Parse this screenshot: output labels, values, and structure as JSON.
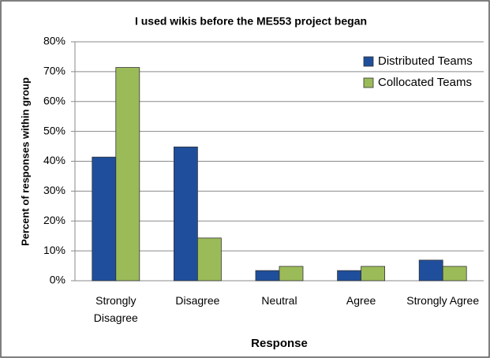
{
  "chart_data": {
    "type": "bar",
    "title": "I used wikis before the ME553 project began",
    "x_label": "Response",
    "y_label": "Percent of responses within group",
    "categories": [
      "Strongly Disagree",
      "Disagree",
      "Neutral",
      "Agree",
      "Strongly Agree"
    ],
    "series": [
      {
        "name": "Distributed Teams",
        "color": "#1f4e9c",
        "values": [
          41.4,
          44.8,
          3.4,
          3.4,
          6.9
        ]
      },
      {
        "name": "Collocated Teams",
        "color": "#9bbb59",
        "values": [
          71.4,
          14.3,
          4.8,
          4.8,
          4.8
        ]
      }
    ],
    "ylim": [
      0,
      80
    ],
    "yticks": [
      {
        "value": 0,
        "label": "0%"
      },
      {
        "value": 10,
        "label": "10%"
      },
      {
        "value": 20,
        "label": "20%"
      },
      {
        "value": 30,
        "label": "30%"
      },
      {
        "value": 40,
        "label": "40%"
      },
      {
        "value": 50,
        "label": "50%"
      },
      {
        "value": 60,
        "label": "60%"
      },
      {
        "value": 70,
        "label": "70%"
      },
      {
        "value": 80,
        "label": "80%"
      }
    ],
    "grid": true,
    "legend": "upper right"
  }
}
